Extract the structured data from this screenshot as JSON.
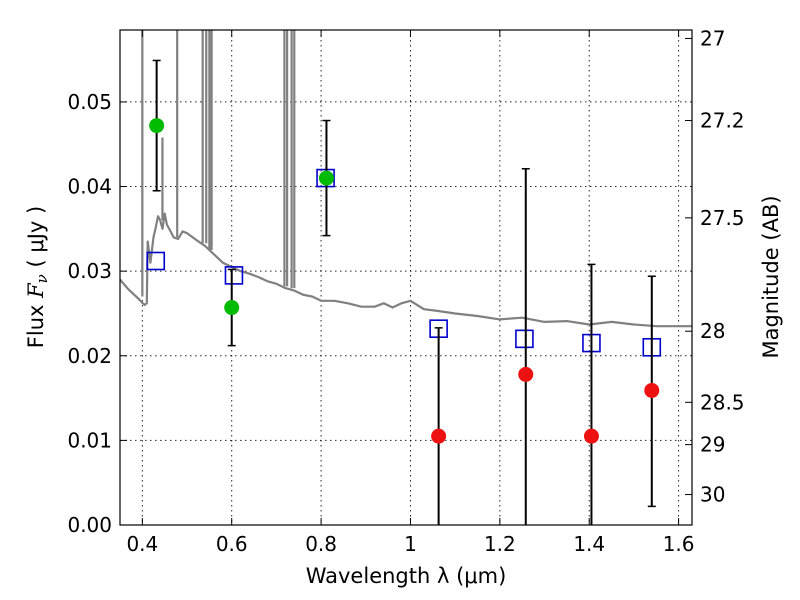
{
  "chart_data": {
    "type": "scatter",
    "title": "",
    "xlabel": "Wavelength  λ (μm)",
    "ylabel": "Flux  F_ν  ( μJy )",
    "y2label": "Magnitude (AB)",
    "xlim": [
      0.35,
      1.63
    ],
    "ylim": [
      0.0,
      0.0585
    ],
    "x_ticks": [
      0.4,
      0.6,
      0.8,
      1.0,
      1.2,
      1.4,
      1.6
    ],
    "x_tick_labels": [
      "0.4",
      "0.6",
      "0.8",
      "1",
      "1.2",
      "1.4",
      "1.6"
    ],
    "y_ticks": [
      0.0,
      0.01,
      0.02,
      0.03,
      0.04,
      0.05
    ],
    "y_tick_labels": [
      "0.00",
      "0.01",
      "0.02",
      "0.03",
      "0.04",
      "0.05"
    ],
    "y2_ticks": [
      {
        "label": "27",
        "flux": 0.0575
      },
      {
        "label": "27.2",
        "flux": 0.0478
      },
      {
        "label": "27.5",
        "flux": 0.0363
      },
      {
        "label": "28",
        "flux": 0.0229
      },
      {
        "label": "28.5",
        "flux": 0.0145
      },
      {
        "label": "29",
        "flux": 0.0095
      },
      {
        "label": "30",
        "flux": 0.0036
      }
    ],
    "grid": true,
    "series": [
      {
        "kind": "model_sed_line",
        "color": "#808080",
        "x": [
          0.35,
          0.37,
          0.39,
          0.405,
          0.41,
          0.412,
          0.418,
          0.425,
          0.43,
          0.435,
          0.44,
          0.445,
          0.45,
          0.455,
          0.46,
          0.47,
          0.48,
          0.49,
          0.5,
          0.52,
          0.54,
          0.56,
          0.58,
          0.6,
          0.62,
          0.64,
          0.66,
          0.68,
          0.7,
          0.72,
          0.74,
          0.76,
          0.78,
          0.8,
          0.83,
          0.86,
          0.89,
          0.92,
          0.94,
          0.96,
          0.98,
          1.0,
          1.03,
          1.06,
          1.1,
          1.15,
          1.2,
          1.25,
          1.3,
          1.35,
          1.4,
          1.45,
          1.5,
          1.55,
          1.6,
          1.63
        ],
        "y": [
          0.029,
          0.0278,
          0.0268,
          0.026,
          0.0262,
          0.0335,
          0.031,
          0.034,
          0.0352,
          0.0365,
          0.036,
          0.035,
          0.0368,
          0.0355,
          0.035,
          0.034,
          0.0338,
          0.0347,
          0.0345,
          0.0337,
          0.033,
          0.032,
          0.031,
          0.0305,
          0.03,
          0.0297,
          0.0293,
          0.0288,
          0.0285,
          0.028,
          0.0277,
          0.0272,
          0.027,
          0.0265,
          0.0265,
          0.0262,
          0.0258,
          0.0258,
          0.0262,
          0.0257,
          0.0262,
          0.0265,
          0.0255,
          0.0253,
          0.025,
          0.0247,
          0.0243,
          0.0245,
          0.024,
          0.0241,
          0.0237,
          0.024,
          0.0237,
          0.0235,
          0.0235,
          0.0235
        ]
      },
      {
        "kind": "model_emission_lines",
        "color": "#808080",
        "lines": [
          {
            "x": 0.4,
            "y_base": 0.027,
            "y_top": 0.0585
          },
          {
            "x": 0.445,
            "y_base": 0.036,
            "y_top": 0.0458
          },
          {
            "x": 0.478,
            "y_base": 0.034,
            "y_top": 0.0585
          },
          {
            "x": 0.535,
            "y_base": 0.0333,
            "y_top": 0.0585
          },
          {
            "x": 0.543,
            "y_base": 0.0333,
            "y_top": 0.0585
          },
          {
            "x": 0.55,
            "y_base": 0.0325,
            "y_top": 0.0585
          },
          {
            "x": 0.555,
            "y_base": 0.0325,
            "y_top": 0.0585
          },
          {
            "x": 0.718,
            "y_base": 0.0282,
            "y_top": 0.0585
          },
          {
            "x": 0.724,
            "y_base": 0.0282,
            "y_top": 0.0585
          },
          {
            "x": 0.734,
            "y_base": 0.028,
            "y_top": 0.0585
          },
          {
            "x": 0.74,
            "y_base": 0.028,
            "y_top": 0.0585
          }
        ]
      },
      {
        "kind": "model_photometry_squares",
        "color": "#0000cc",
        "x": [
          0.43,
          0.605,
          0.81,
          1.063,
          1.255,
          1.405,
          1.54
        ],
        "y": [
          0.0312,
          0.0295,
          0.041,
          0.0232,
          0.022,
          0.0215,
          0.021
        ]
      },
      {
        "kind": "detections",
        "color": "#00bb00",
        "x": [
          0.432,
          0.6,
          0.812
        ],
        "y": [
          0.0472,
          0.0257,
          0.041
        ],
        "yerr": [
          0.0077,
          0.0045,
          0.0068
        ]
      },
      {
        "kind": "upper_limits",
        "color": "#ee1111",
        "x": [
          1.063,
          1.258,
          1.405,
          1.54
        ],
        "y": [
          0.0105,
          0.0178,
          0.0105,
          0.0159
        ],
        "yerr_low": [
          0.012,
          0.025,
          0.0245,
          0.0137
        ],
        "yerr_high": [
          0.0128,
          0.0243,
          0.0203,
          0.0135
        ]
      }
    ]
  }
}
